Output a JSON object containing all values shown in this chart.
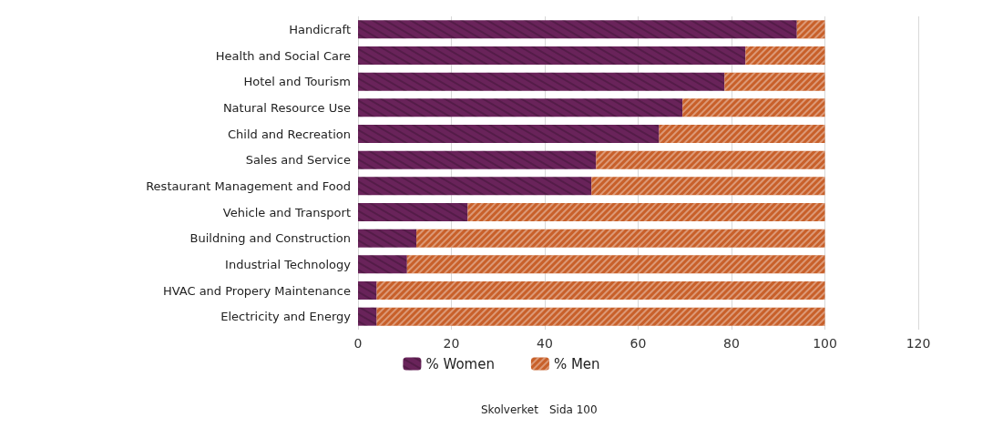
{
  "chart_data": {
    "type": "bar",
    "orientation": "horizontal",
    "stacked": true,
    "categories": [
      "Handicraft",
      "Health and Social Care",
      "Hotel and Tourism",
      "Natural Resource Use",
      "Child and Recreation",
      "Sales and Service",
      "Restaurant Management and Food",
      "Vehicle and Transport",
      "Buildning and Construction",
      "Industrial Technology",
      "HVAC and Propery Maintenance",
      "Electricity and Energy"
    ],
    "series": [
      {
        "name": "% Women",
        "color": "#69235a",
        "values": [
          94,
          83,
          78.5,
          69.5,
          64.5,
          51,
          50,
          23.5,
          12.5,
          10.5,
          4,
          4
        ]
      },
      {
        "name": "% Men",
        "color": "#c8602a",
        "values": [
          6,
          17,
          21.5,
          30.5,
          35.5,
          49,
          50,
          76.5,
          87.5,
          89.5,
          96,
          96
        ]
      }
    ],
    "xlim": [
      0,
      120
    ],
    "xticks": [
      0,
      20,
      40,
      60,
      80,
      100,
      120
    ],
    "grid": "x",
    "legend": "bottom",
    "annotations": [
      "Skolverket",
      "Sida 100"
    ]
  }
}
